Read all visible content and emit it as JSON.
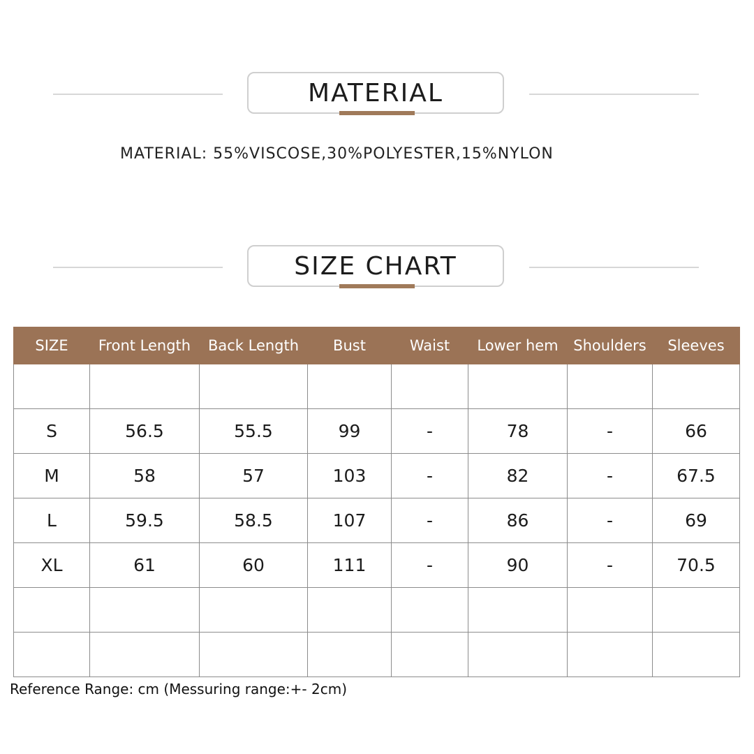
{
  "material_section": {
    "title": "MATERIAL",
    "text": "MATERIAL: 55%VISCOSE,30%POLYESTER,15%NYLON"
  },
  "size_section": {
    "title": "SIZE CHART"
  },
  "colors": {
    "accent_brown": "#9b7356",
    "underline_brown": "#a07a5a",
    "divider_gray": "#d7d7d7"
  },
  "table": {
    "headers": [
      "SIZE",
      "Front Length",
      "Back Length",
      "Bust",
      "Waist",
      "Lower hem",
      "Shoulders",
      "Sleeves"
    ],
    "rows": [
      [
        "",
        "",
        "",
        "",
        "",
        "",
        "",
        ""
      ],
      [
        "S",
        "56.5",
        "55.5",
        "99",
        "-",
        "78",
        "-",
        "66"
      ],
      [
        "M",
        "58",
        "57",
        "103",
        "-",
        "82",
        "-",
        "67.5"
      ],
      [
        "L",
        "59.5",
        "58.5",
        "107",
        "-",
        "86",
        "-",
        "69"
      ],
      [
        "XL",
        "61",
        "60",
        "111",
        "-",
        "90",
        "-",
        "70.5"
      ],
      [
        "",
        "",
        "",
        "",
        "",
        "",
        "",
        ""
      ],
      [
        "",
        "",
        "",
        "",
        "",
        "",
        "",
        ""
      ]
    ]
  },
  "footnote": "Reference Range: cm (Messuring range:+- 2cm)"
}
